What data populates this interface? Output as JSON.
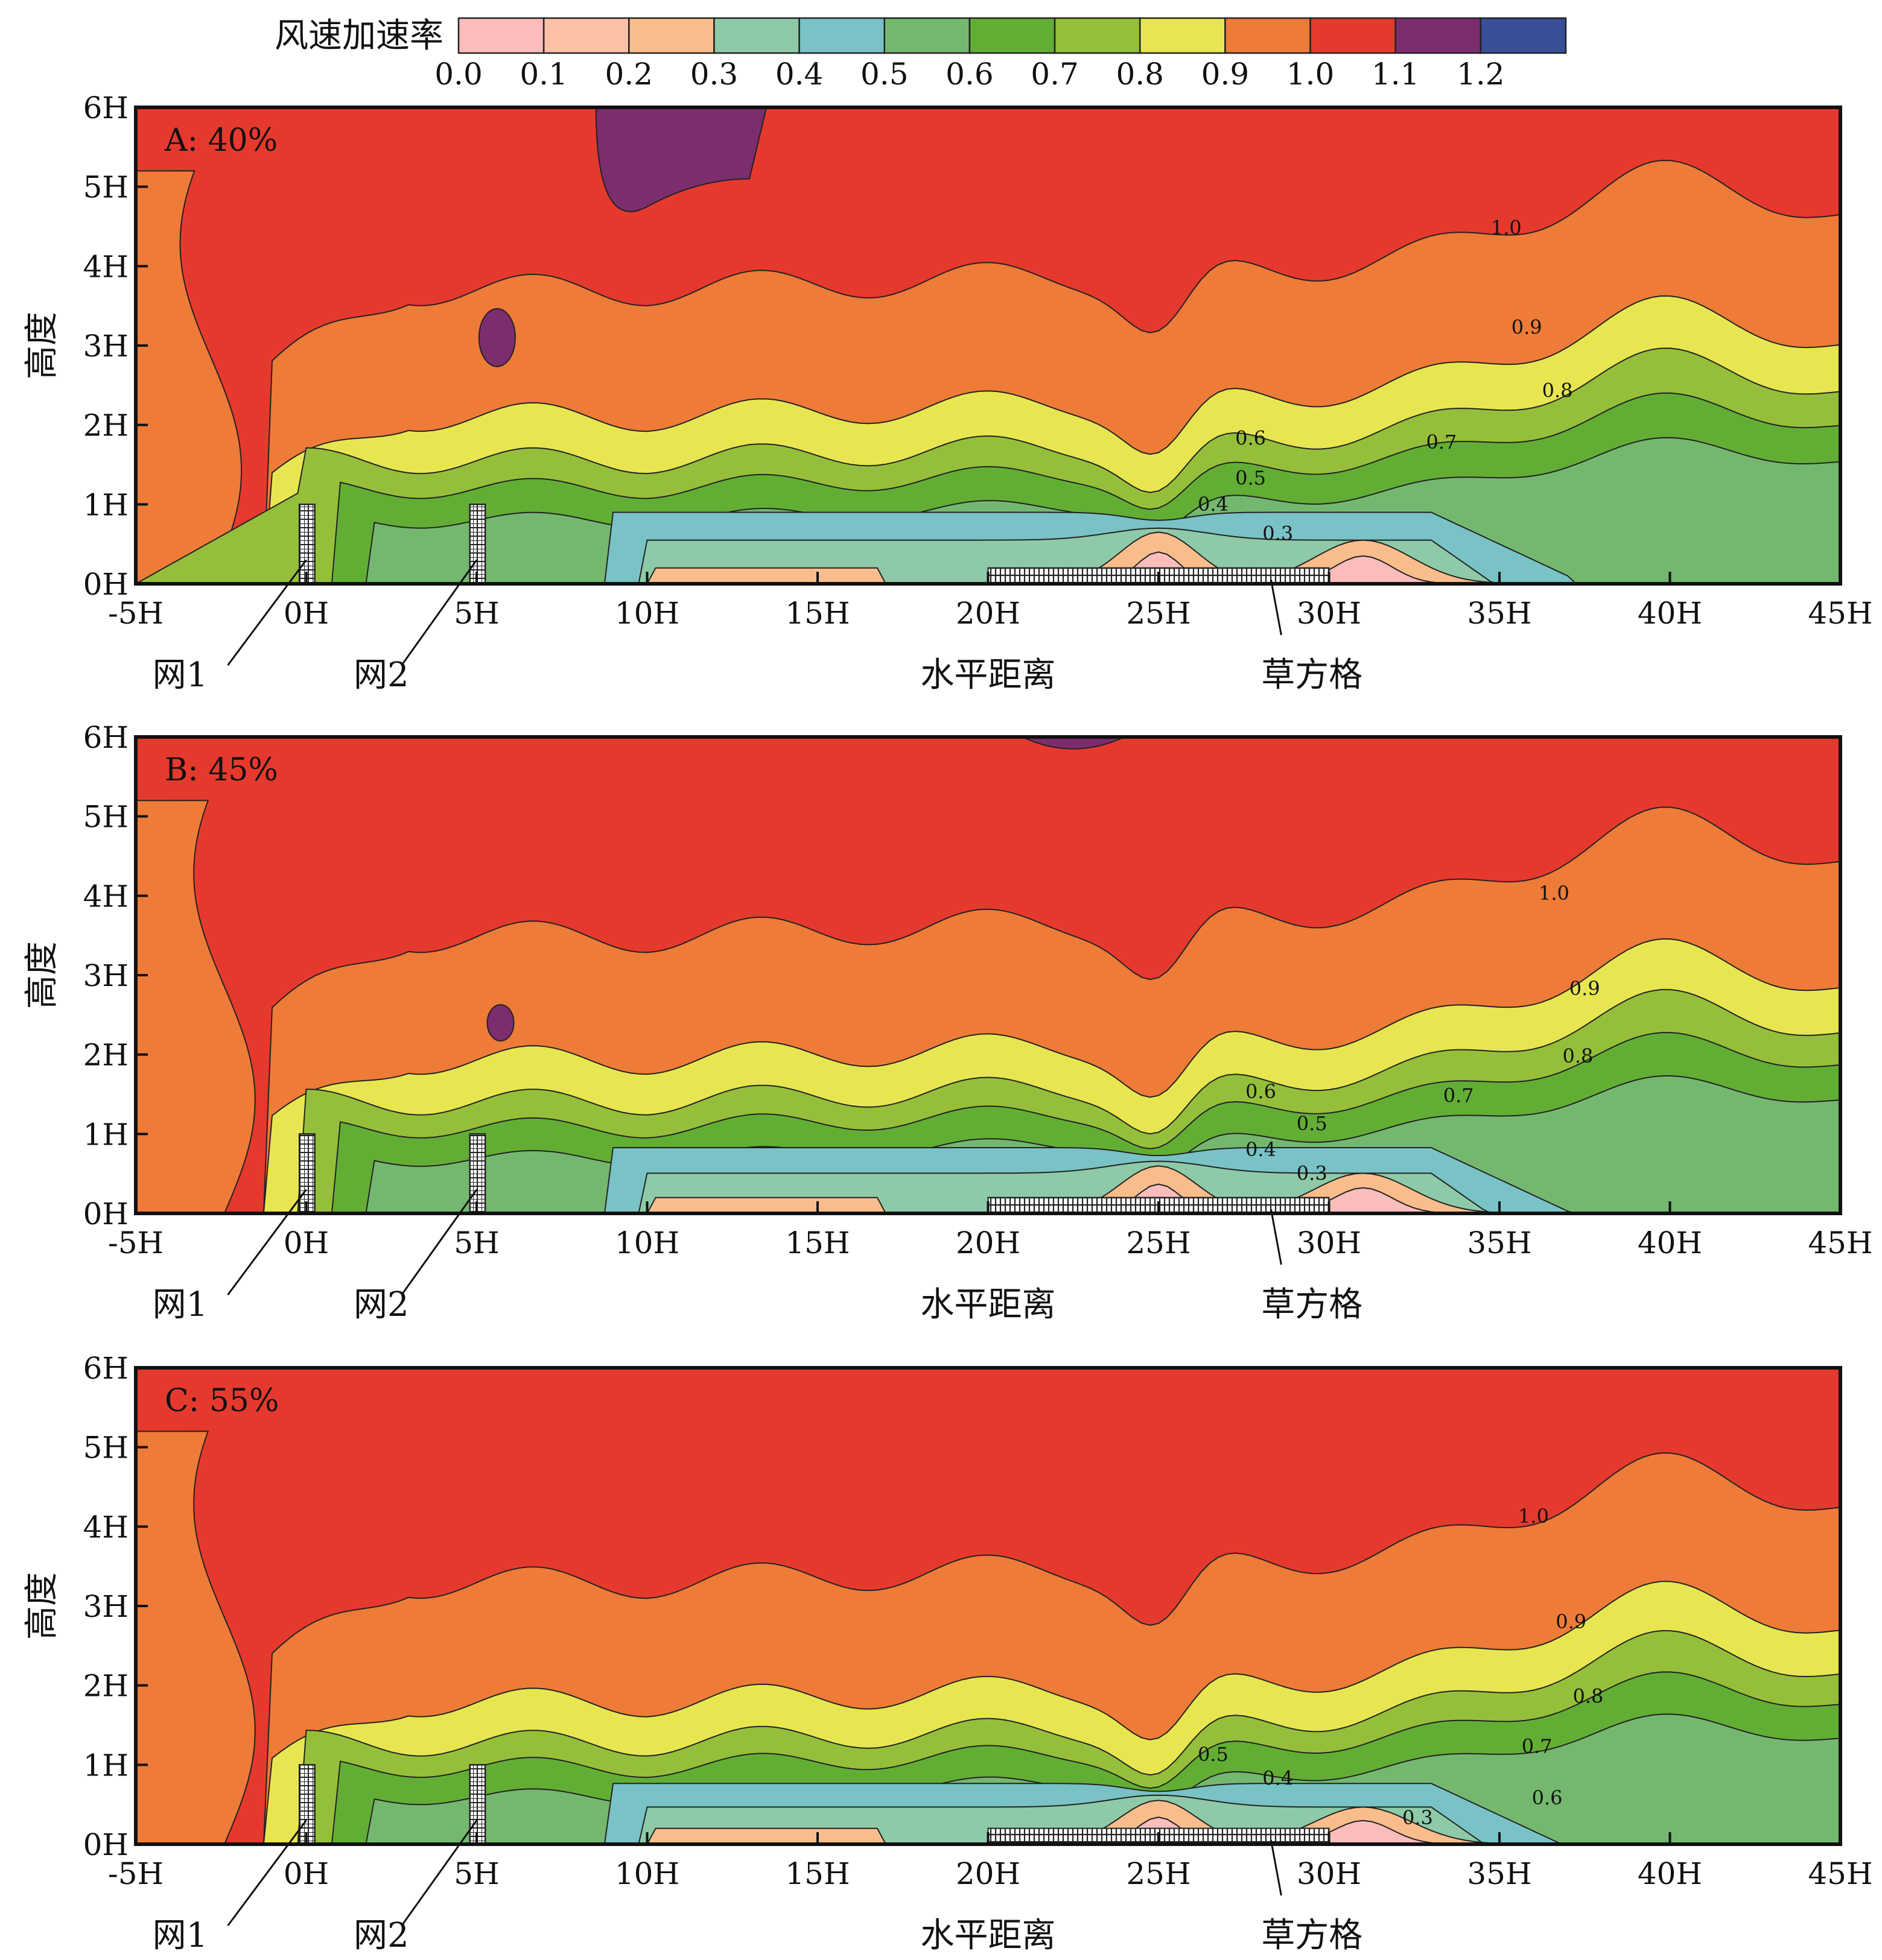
{
  "colorbar": {
    "title": "风速加速率",
    "ticks": [
      "0.0",
      "0.1",
      "0.2",
      "0.3",
      "0.4",
      "0.5",
      "0.6",
      "0.7",
      "0.8",
      "0.9",
      "1.0",
      "1.1",
      "1.2"
    ],
    "colors": [
      "#fbbcbc",
      "#fbc0a6",
      "#f9bd8c",
      "#8ecaa8",
      "#79c2c5",
      "#74b86f",
      "#62ae35",
      "#95bf3a",
      "#e7e651",
      "#ee7b38",
      "#e6392e",
      "#7c2d6d",
      "#3a4f98"
    ]
  },
  "axis": {
    "x_ticks": [
      "-5H",
      "0H",
      "5H",
      "10H",
      "15H",
      "20H",
      "25H",
      "30H",
      "35H",
      "40H",
      "45H"
    ],
    "y_ticks": [
      "0H",
      "1H",
      "2H",
      "3H",
      "4H",
      "5H",
      "6H"
    ],
    "ylabel": "高度",
    "xlabel": "水平距离",
    "fence1_label": "网1",
    "fence2_label": "网2",
    "grid_label": "草方格"
  },
  "chart_data": [
    {
      "type": "heatmap",
      "title": "A: 40%",
      "xlabel": "水平距离",
      "ylabel": "高度",
      "x_range": [
        -5,
        45
      ],
      "y_range": [
        0,
        6
      ],
      "levels": [
        0.0,
        0.1,
        0.2,
        0.3,
        0.4,
        0.5,
        0.6,
        0.7,
        0.8,
        0.9,
        1.0,
        1.1,
        1.2
      ],
      "contour_labels": [
        {
          "text": "1.0",
          "x": 35.2,
          "y": 4.4
        },
        {
          "text": "0.9",
          "x": 35.8,
          "y": 3.15
        },
        {
          "text": "0.8",
          "x": 36.7,
          "y": 2.35
        },
        {
          "text": "0.7",
          "x": 33.3,
          "y": 1.7
        },
        {
          "text": "0.6",
          "x": 27.7,
          "y": 1.75
        },
        {
          "text": "0.5",
          "x": 27.7,
          "y": 1.25
        },
        {
          "text": "0.4",
          "x": 26.6,
          "y": 0.92
        },
        {
          "text": "0.3",
          "x": 28.5,
          "y": 0.55
        }
      ]
    },
    {
      "type": "heatmap",
      "title": "B: 45%",
      "xlabel": "水平距离",
      "ylabel": "高度",
      "x_range": [
        -5,
        45
      ],
      "y_range": [
        0,
        6
      ],
      "levels": [
        0.0,
        0.1,
        0.2,
        0.3,
        0.4,
        0.5,
        0.6,
        0.7,
        0.8,
        0.9,
        1.0,
        1.1,
        1.2
      ],
      "contour_labels": [
        {
          "text": "1.0",
          "x": 36.6,
          "y": 3.95
        },
        {
          "text": "0.9",
          "x": 37.5,
          "y": 2.75
        },
        {
          "text": "0.8",
          "x": 37.3,
          "y": 1.9
        },
        {
          "text": "0.7",
          "x": 33.8,
          "y": 1.4
        },
        {
          "text": "0.6",
          "x": 28.0,
          "y": 1.45
        },
        {
          "text": "0.5",
          "x": 29.5,
          "y": 1.05
        },
        {
          "text": "0.4",
          "x": 28.0,
          "y": 0.72
        },
        {
          "text": "0.3",
          "x": 29.5,
          "y": 0.42
        }
      ]
    },
    {
      "type": "heatmap",
      "title": "C: 55%",
      "xlabel": "水平距离",
      "ylabel": "高度",
      "x_range": [
        -5,
        45
      ],
      "y_range": [
        0,
        6
      ],
      "levels": [
        0.0,
        0.1,
        0.2,
        0.3,
        0.4,
        0.5,
        0.6,
        0.7,
        0.8,
        0.9,
        1.0,
        1.1,
        1.2
      ],
      "contour_labels": [
        {
          "text": "1.0",
          "x": 36.0,
          "y": 4.05
        },
        {
          "text": "0.9",
          "x": 37.1,
          "y": 2.72
        },
        {
          "text": "0.8",
          "x": 37.6,
          "y": 1.78
        },
        {
          "text": "0.7",
          "x": 36.1,
          "y": 1.15
        },
        {
          "text": "0.6",
          "x": 36.4,
          "y": 0.5
        },
        {
          "text": "0.5",
          "x": 26.6,
          "y": 1.05
        },
        {
          "text": "0.4",
          "x": 28.5,
          "y": 0.75
        },
        {
          "text": "0.3",
          "x": 32.6,
          "y": 0.25
        }
      ]
    }
  ]
}
